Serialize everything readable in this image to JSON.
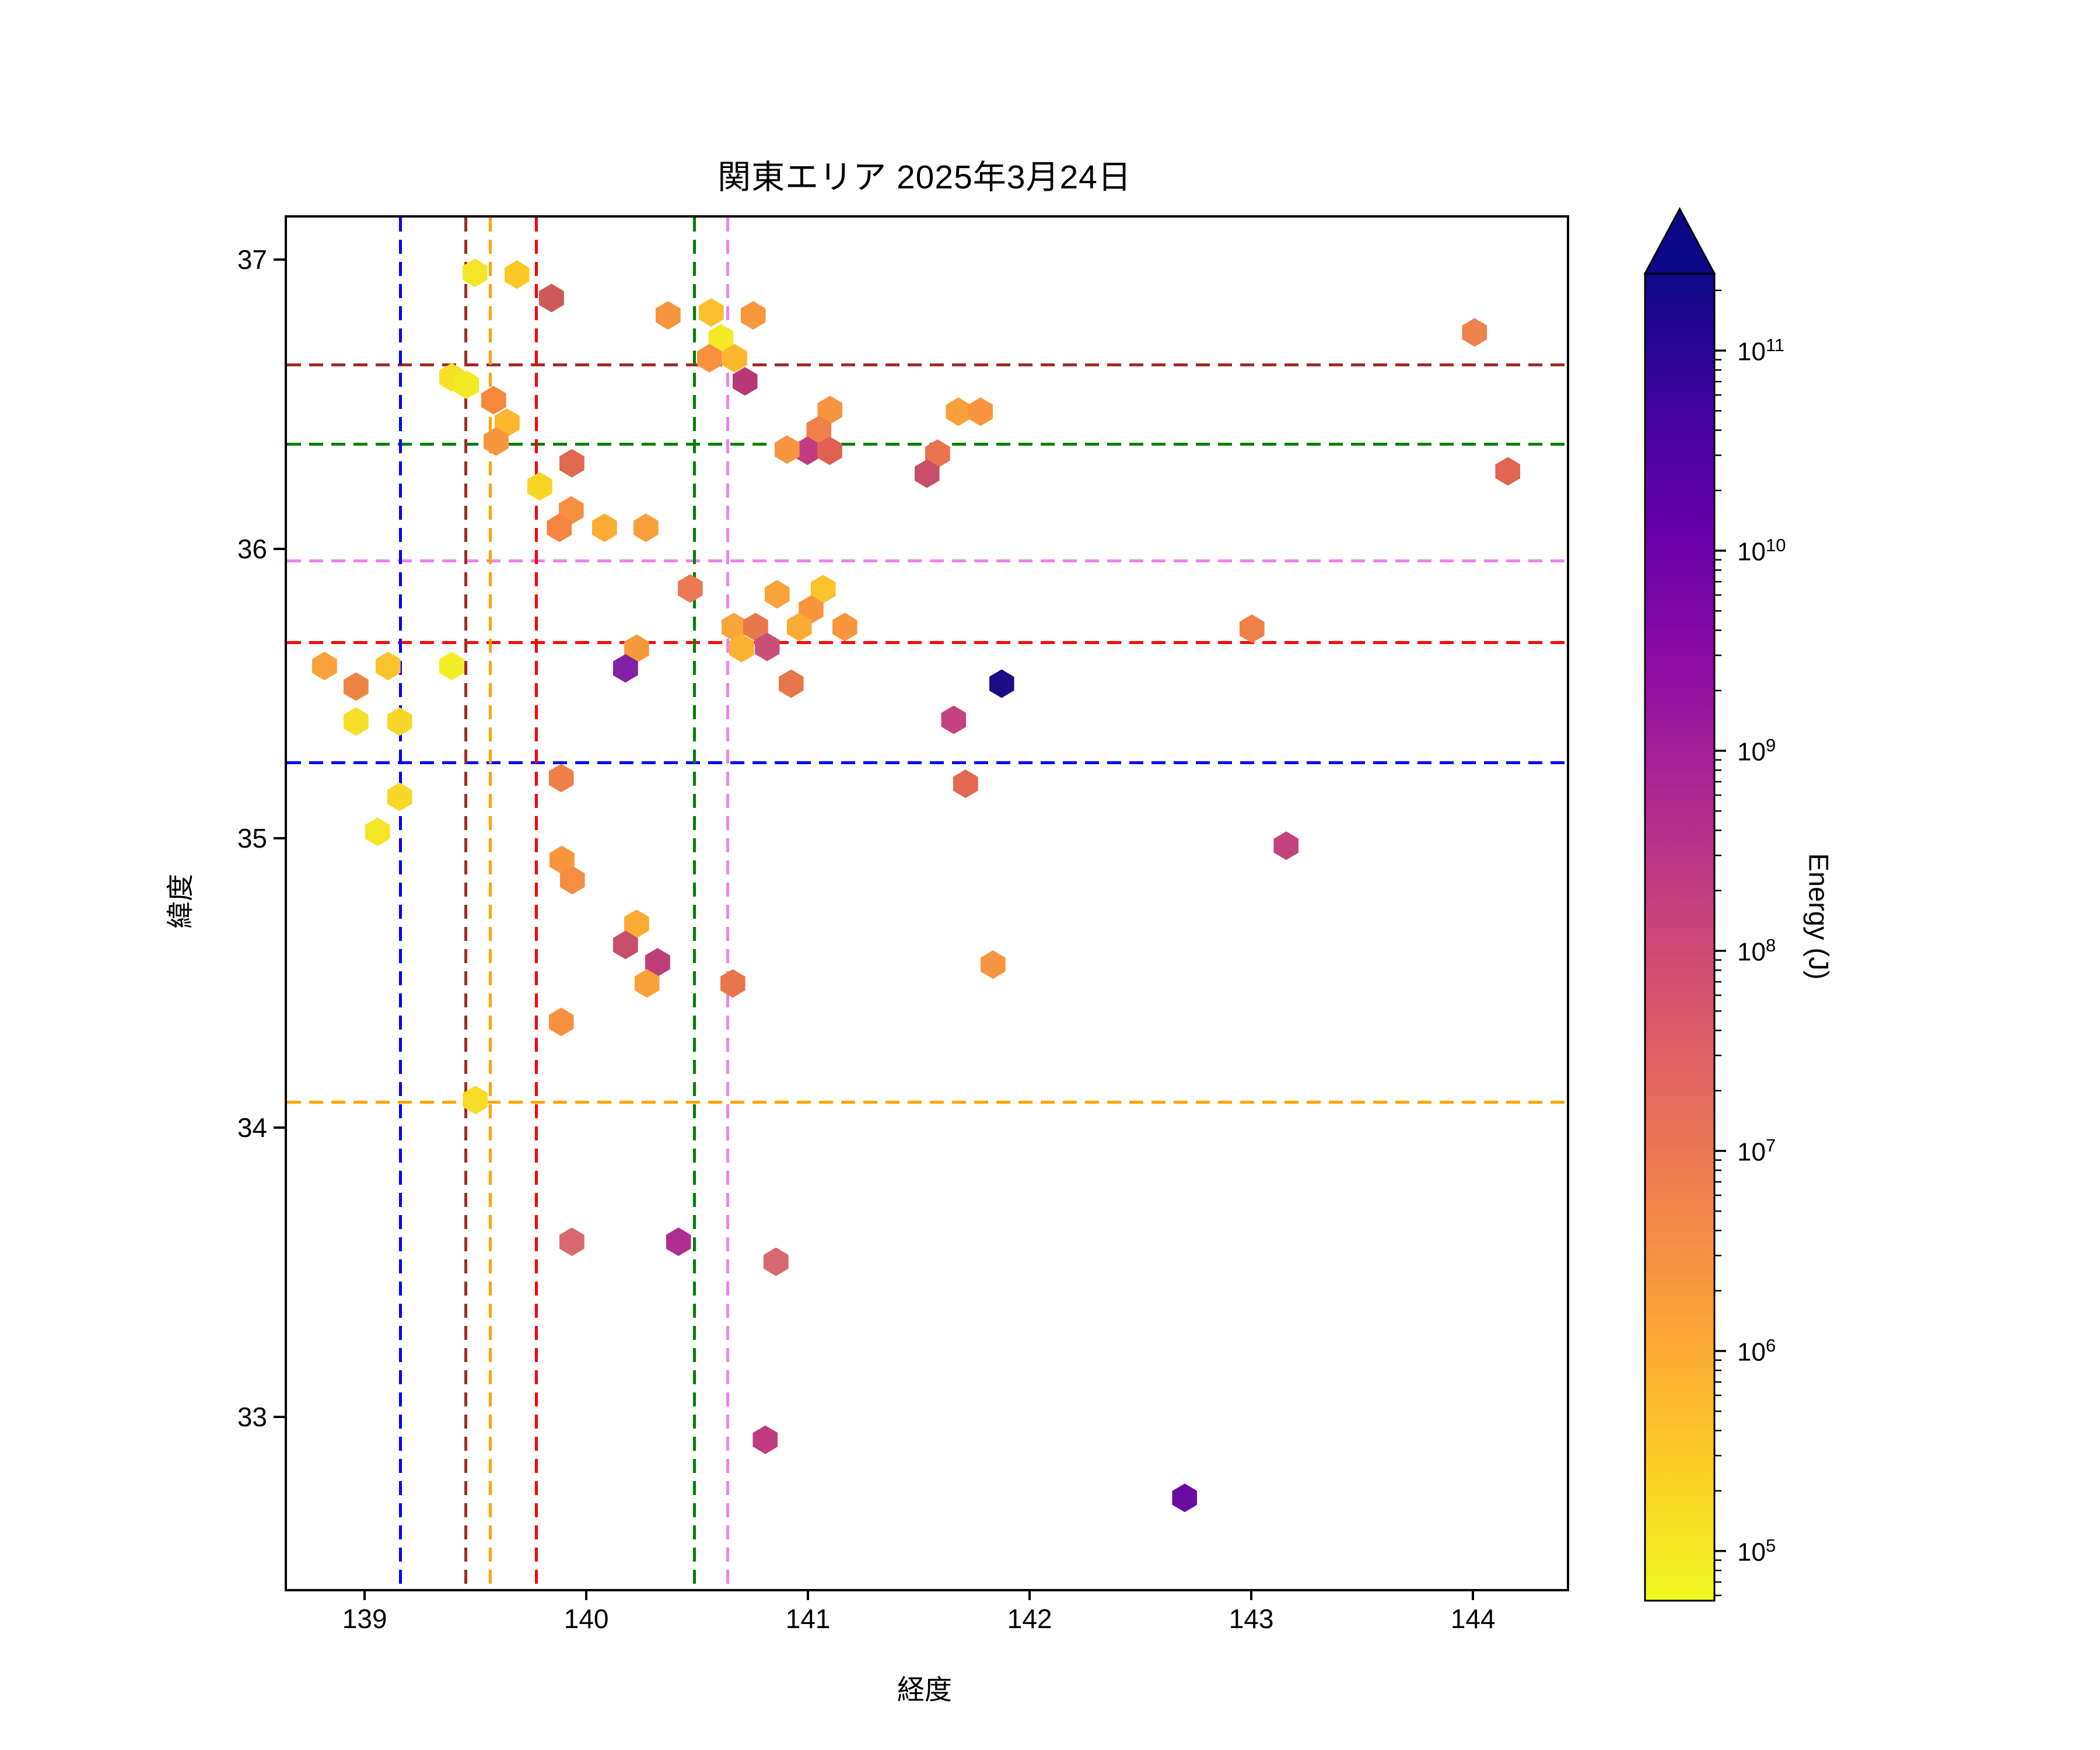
{
  "chart_data": {
    "type": "scatter",
    "marker": "hexagon",
    "title": "関東エリア 2025年3月24日",
    "xlabel": "経度",
    "ylabel": "緯度",
    "xlim": [
      138.639,
      144.413
    ],
    "ylim": [
      32.413,
      37.153
    ],
    "xticks": [
      139,
      140,
      141,
      142,
      143,
      144
    ],
    "yticks": [
      33,
      34,
      35,
      36,
      37
    ],
    "grid": false,
    "legend": "none",
    "colorbar": {
      "label": "Energy (J)",
      "scale": "log",
      "extend": "max",
      "tick_exponents": [
        5,
        6,
        7,
        8,
        9,
        10,
        11
      ],
      "bar_log10_range": [
        4.752,
        11.385
      ],
      "gradient_top_to_bottom": [
        "#0d0887",
        "#41049d",
        "#6a00a8",
        "#8f0da4",
        "#b12a90",
        "#cc4778",
        "#e16462",
        "#f2844b",
        "#fca636",
        "#fcce25",
        "#f0f921"
      ]
    },
    "reference_lines": {
      "vertical": [
        {
          "lon": 139.152,
          "color": "#0000ff",
          "style": "dashed",
          "name": "blue"
        },
        {
          "lon": 139.446,
          "color": "#9e2b25",
          "style": "dashed",
          "name": "dark-red"
        },
        {
          "lon": 139.557,
          "color": "#ffa500",
          "style": "dashed",
          "name": "orange"
        },
        {
          "lon": 139.764,
          "color": "#ff0000",
          "style": "dashed",
          "name": "red"
        },
        {
          "lon": 140.476,
          "color": "#008000",
          "style": "dashed",
          "name": "green"
        },
        {
          "lon": 140.626,
          "color": "#ee82ee",
          "style": "dashed",
          "name": "violet"
        }
      ],
      "horizontal": [
        {
          "lat": 36.643,
          "color": "#9e2b25",
          "style": "dashed",
          "name": "dark-red"
        },
        {
          "lat": 36.369,
          "color": "#008000",
          "style": "dashed",
          "name": "green"
        },
        {
          "lat": 35.966,
          "color": "#ee82ee",
          "style": "dashed",
          "name": "violet"
        },
        {
          "lat": 35.685,
          "color": "#ff0000",
          "style": "dashed",
          "name": "red"
        },
        {
          "lat": 35.268,
          "color": "#0000ff",
          "style": "dashed",
          "name": "blue"
        },
        {
          "lat": 34.095,
          "color": "#ffa500",
          "style": "dashed",
          "name": "orange"
        }
      ]
    },
    "points": [
      {
        "lon": 139.487,
        "lat": 36.962,
        "color": "#f4e626",
        "energy_j": 120000.0
      },
      {
        "lon": 139.676,
        "lat": 36.956,
        "color": "#fcca26",
        "energy_j": 500000.0
      },
      {
        "lon": 139.832,
        "lat": 36.875,
        "color": "#cd5a58",
        "energy_j": 50000000.0
      },
      {
        "lon": 140.358,
        "lat": 36.815,
        "color": "#f8963d",
        "energy_j": 3000000.0
      },
      {
        "lon": 140.553,
        "lat": 36.825,
        "color": "#fcbf2e",
        "energy_j": 600000.0
      },
      {
        "lon": 140.742,
        "lat": 36.815,
        "color": "#f9973c",
        "energy_j": 3000000.0
      },
      {
        "lon": 140.597,
        "lat": 36.736,
        "color": "#f3ea25",
        "energy_j": 120000.0
      },
      {
        "lon": 140.545,
        "lat": 36.667,
        "color": "#f9913e",
        "energy_j": 4000000.0
      },
      {
        "lon": 140.658,
        "lat": 36.667,
        "color": "#fcb72f",
        "energy_j": 700000.0
      },
      {
        "lon": 140.705,
        "lat": 36.587,
        "color": "#b73779",
        "energy_j": 300000000.0
      },
      {
        "lon": 139.382,
        "lat": 36.601,
        "color": "#f6e126",
        "energy_j": 160000.0
      },
      {
        "lon": 139.449,
        "lat": 36.575,
        "color": "#f3ea25",
        "energy_j": 120000.0
      },
      {
        "lon": 139.571,
        "lat": 36.522,
        "color": "#f8873c",
        "energy_j": 5000000.0
      },
      {
        "lon": 139.632,
        "lat": 36.444,
        "color": "#fcb72f",
        "energy_j": 700000.0
      },
      {
        "lon": 139.582,
        "lat": 36.379,
        "color": "#f9953d",
        "energy_j": 3000000.0
      },
      {
        "lon": 139.924,
        "lat": 36.304,
        "color": "#e1694f",
        "energy_j": 25000000.0
      },
      {
        "lon": 139.779,
        "lat": 36.224,
        "color": "#f6d525",
        "energy_j": 300000.0
      },
      {
        "lon": 139.921,
        "lat": 36.141,
        "color": "#f78f41",
        "energy_j": 4500000.0
      },
      {
        "lon": 139.868,
        "lat": 36.081,
        "color": "#f58540",
        "energy_j": 6000000.0
      },
      {
        "lon": 140.071,
        "lat": 36.081,
        "color": "#fbac33",
        "energy_j": 1000000.0
      },
      {
        "lon": 140.258,
        "lat": 36.081,
        "color": "#f9a03a",
        "energy_j": 2000000.0
      },
      {
        "lon": 141.089,
        "lat": 36.488,
        "color": "#f89540",
        "energy_j": 3000000.0
      },
      {
        "lon": 141.039,
        "lat": 36.419,
        "color": "#ef8049",
        "energy_j": 8000000.0
      },
      {
        "lon": 140.987,
        "lat": 36.347,
        "color": "#c13b82",
        "energy_j": 250000000.0
      },
      {
        "lon": 141.087,
        "lat": 36.347,
        "color": "#e06152",
        "energy_j": 30000000.0
      },
      {
        "lon": 140.895,
        "lat": 36.351,
        "color": "#f89540",
        "energy_j": 3000000.0
      },
      {
        "lon": 141.668,
        "lat": 36.482,
        "color": "#f9a03a",
        "energy_j": 2000000.0
      },
      {
        "lon": 141.768,
        "lat": 36.482,
        "color": "#f9953d",
        "energy_j": 3000000.0
      },
      {
        "lon": 141.574,
        "lat": 36.337,
        "color": "#e8734c",
        "energy_j": 14000000.0
      },
      {
        "lon": 141.526,
        "lat": 36.268,
        "color": "#c74e6b",
        "energy_j": 110000000.0
      },
      {
        "lon": 140.85,
        "lat": 35.851,
        "color": "#f9a33b",
        "energy_j": 1800000.0
      },
      {
        "lon": 141.058,
        "lat": 35.869,
        "color": "#fcc32c",
        "energy_j": 550000.0
      },
      {
        "lon": 141.003,
        "lat": 35.798,
        "color": "#f9953d",
        "energy_j": 3000000.0
      },
      {
        "lon": 140.95,
        "lat": 35.738,
        "color": "#fbab33",
        "energy_j": 1000000.0
      },
      {
        "lon": 141.155,
        "lat": 35.738,
        "color": "#f9963d",
        "energy_j": 3000000.0
      },
      {
        "lon": 140.655,
        "lat": 35.738,
        "color": "#faa53a",
        "energy_j": 1600000.0
      },
      {
        "lon": 140.753,
        "lat": 35.738,
        "color": "#e8784a",
        "energy_j": 12000000.0
      },
      {
        "lon": 140.805,
        "lat": 35.669,
        "color": "#c85077",
        "energy_j": 110000000.0
      },
      {
        "lon": 140.69,
        "lat": 35.665,
        "color": "#fbb131",
        "energy_j": 900000.0
      },
      {
        "lon": 140.913,
        "lat": 35.542,
        "color": "#e8764b",
        "energy_j": 13000000.0
      },
      {
        "lon": 141.863,
        "lat": 35.542,
        "color": "#1c0d86",
        "energy_j": 100000000000.0
      },
      {
        "lon": 141.647,
        "lat": 35.417,
        "color": "#c2437e",
        "energy_j": 200000000.0
      },
      {
        "lon": 141.7,
        "lat": 35.196,
        "color": "#e4674f",
        "energy_j": 20000000.0
      },
      {
        "lon": 140.458,
        "lat": 35.871,
        "color": "#ec7952",
        "energy_j": 12000000.0
      },
      {
        "lon": 140.216,
        "lat": 35.663,
        "color": "#f59b3d",
        "energy_j": 2500000.0
      },
      {
        "lon": 140.166,
        "lat": 35.595,
        "color": "#8221a5",
        "energy_j": 5000000000.0
      },
      {
        "lon": 138.808,
        "lat": 35.603,
        "color": "#f9a13b",
        "energy_j": 1800000.0
      },
      {
        "lon": 138.95,
        "lat": 35.532,
        "color": "#ee8444",
        "energy_j": 8000000.0
      },
      {
        "lon": 139.095,
        "lat": 35.603,
        "color": "#fcc32c",
        "energy_j": 550000.0
      },
      {
        "lon": 139.382,
        "lat": 35.603,
        "color": "#f2ef28",
        "energy_j": 100000.0
      },
      {
        "lon": 138.95,
        "lat": 35.411,
        "color": "#f5e029",
        "energy_j": 180000.0
      },
      {
        "lon": 139.147,
        "lat": 35.411,
        "color": "#f7d727",
        "energy_j": 250000.0
      },
      {
        "lon": 139.147,
        "lat": 35.151,
        "color": "#f7d727",
        "energy_j": 250000.0
      },
      {
        "lon": 139.047,
        "lat": 35.03,
        "color": "#f4e626",
        "energy_j": 130000.0
      },
      {
        "lon": 139.876,
        "lat": 35.216,
        "color": "#ee7f48",
        "energy_j": 9000000.0
      },
      {
        "lon": 139.879,
        "lat": 34.933,
        "color": "#f9963d",
        "energy_j": 3000000.0
      },
      {
        "lon": 139.926,
        "lat": 34.863,
        "color": "#f58d41",
        "energy_j": 5000000.0
      },
      {
        "lon": 140.216,
        "lat": 34.712,
        "color": "#fbab33",
        "energy_j": 1000000.0
      },
      {
        "lon": 140.166,
        "lat": 34.639,
        "color": "#c74e6b",
        "energy_j": 110000000.0
      },
      {
        "lon": 140.311,
        "lat": 34.579,
        "color": "#bd3f77",
        "energy_j": 220000000.0
      },
      {
        "lon": 140.263,
        "lat": 34.506,
        "color": "#f9a03a",
        "energy_j": 2000000.0
      },
      {
        "lon": 139.876,
        "lat": 34.373,
        "color": "#f6913f",
        "energy_j": 4000000.0
      },
      {
        "lon": 139.489,
        "lat": 34.103,
        "color": "#f7dc25",
        "energy_j": 250000.0
      },
      {
        "lon": 140.65,
        "lat": 34.506,
        "color": "#e8764b",
        "energy_j": 13000000.0
      },
      {
        "lon": 142.992,
        "lat": 35.732,
        "color": "#ee8148",
        "energy_j": 8500000.0
      },
      {
        "lon": 143.147,
        "lat": 34.982,
        "color": "#c2437e",
        "energy_j": 200000000.0
      },
      {
        "lon": 143.997,
        "lat": 36.756,
        "color": "#ed824d",
        "energy_j": 8500000.0
      },
      {
        "lon": 144.147,
        "lat": 36.276,
        "color": "#e06552",
        "energy_j": 30000000.0
      },
      {
        "lon": 139.924,
        "lat": 33.613,
        "color": "#d96970",
        "energy_j": 60000000.0
      },
      {
        "lon": 140.405,
        "lat": 33.613,
        "color": "#b02d92",
        "energy_j": 800000000.0
      },
      {
        "lon": 140.845,
        "lat": 33.544,
        "color": "#d96970",
        "energy_j": 60000000.0
      },
      {
        "lon": 140.797,
        "lat": 32.929,
        "color": "#c13a7e",
        "energy_j": 250000000.0
      },
      {
        "lon": 142.689,
        "lat": 32.728,
        "color": "#6a0aa3",
        "energy_j": 20000000000.0
      },
      {
        "lon": 141.824,
        "lat": 34.571,
        "color": "#f79640",
        "energy_j": 3000000.0
      }
    ]
  }
}
